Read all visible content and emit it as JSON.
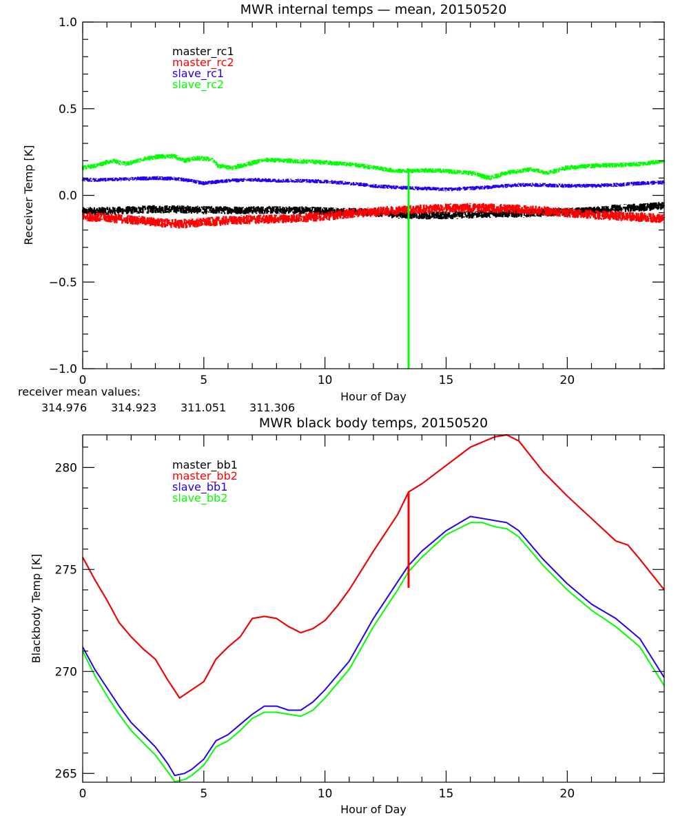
{
  "chart_data": [
    {
      "type": "line",
      "title": "MWR internal temps — mean, 20150520",
      "xlabel": "Hour of Day",
      "ylabel": "Receiver Temp [K]",
      "xlim": [
        0,
        24
      ],
      "ylim": [
        -1.0,
        1.0
      ],
      "xticks": [
        0,
        5,
        10,
        15,
        20
      ],
      "xtick_labels": [
        "0",
        "5",
        "10",
        "15",
        "20"
      ],
      "yticks": [
        -1.0,
        -0.5,
        0.0,
        0.5,
        1.0
      ],
      "ytick_labels": [
        "−1.0",
        "−0.5",
        "0.0",
        "0.5",
        "1.0"
      ],
      "legend_position": "top-left",
      "grid": false,
      "noisy": true,
      "series": [
        {
          "name": "master_rc1",
          "color": "#000000",
          "noise": 0.03,
          "x": [
            0,
            1,
            2,
            3,
            4,
            5,
            6,
            7,
            8,
            9,
            10,
            11,
            12,
            13,
            14,
            15,
            16,
            17,
            18,
            19,
            20,
            21,
            22,
            23,
            24
          ],
          "y": [
            -0.09,
            -0.09,
            -0.085,
            -0.08,
            -0.08,
            -0.085,
            -0.085,
            -0.085,
            -0.085,
            -0.085,
            -0.09,
            -0.095,
            -0.1,
            -0.11,
            -0.115,
            -0.115,
            -0.11,
            -0.105,
            -0.105,
            -0.1,
            -0.095,
            -0.09,
            -0.075,
            -0.07,
            -0.06
          ]
        },
        {
          "name": "master_rc2",
          "color": "#ff0000",
          "noise": 0.035,
          "x": [
            0,
            1,
            2,
            3,
            4,
            5,
            6,
            7,
            8,
            9,
            10,
            11,
            12,
            13,
            14,
            15,
            16,
            17,
            18,
            19,
            20,
            21,
            22,
            23,
            24
          ],
          "y": [
            -0.12,
            -0.13,
            -0.14,
            -0.155,
            -0.165,
            -0.155,
            -0.145,
            -0.14,
            -0.135,
            -0.13,
            -0.12,
            -0.105,
            -0.095,
            -0.085,
            -0.08,
            -0.075,
            -0.07,
            -0.075,
            -0.08,
            -0.09,
            -0.1,
            -0.11,
            -0.12,
            -0.125,
            -0.135
          ]
        },
        {
          "name": "slave_rc1",
          "color": "#2200ee",
          "noise": 0.015,
          "x": [
            0,
            1,
            2,
            3,
            4,
            5,
            6,
            7,
            8,
            9,
            10,
            11,
            12,
            13,
            14,
            15,
            16,
            17,
            18,
            19,
            20,
            21,
            22,
            23,
            24
          ],
          "y": [
            0.09,
            0.09,
            0.095,
            0.1,
            0.095,
            0.07,
            0.085,
            0.09,
            0.085,
            0.085,
            0.08,
            0.07,
            0.055,
            0.045,
            0.04,
            0.035,
            0.04,
            0.05,
            0.06,
            0.06,
            0.055,
            0.055,
            0.06,
            0.07,
            0.075
          ]
        },
        {
          "name": "slave_rc2",
          "color": "#00ff00",
          "noise": 0.018,
          "x": [
            0,
            0.5,
            1.2,
            1.8,
            2.5,
            3.2,
            3.8,
            4.2,
            4.7,
            5.3,
            5.6,
            6.2,
            6.8,
            7.5,
            8.5,
            10,
            11,
            12,
            13,
            14,
            15,
            16,
            16.8,
            17.5,
            18.5,
            19.2,
            20,
            21,
            22,
            23,
            24
          ],
          "y": [
            0.16,
            0.17,
            0.2,
            0.18,
            0.21,
            0.225,
            0.225,
            0.2,
            0.215,
            0.21,
            0.17,
            0.16,
            0.18,
            0.205,
            0.2,
            0.19,
            0.18,
            0.16,
            0.14,
            0.145,
            0.14,
            0.13,
            0.1,
            0.13,
            0.15,
            0.13,
            0.16,
            0.17,
            0.175,
            0.18,
            0.2
          ]
        }
      ],
      "spikes": [
        {
          "series": "slave_rc2",
          "x": 13.45,
          "from": 0.14,
          "to": -1.0
        }
      ],
      "annotation": {
        "label": "receiver mean values:",
        "values": [
          {
            "series": "master_rc1",
            "text": "314.976",
            "color": "#000000"
          },
          {
            "series": "master_rc2",
            "text": "314.923",
            "color": "#ff0000"
          },
          {
            "series": "slave_rc1",
            "text": "311.051",
            "color": "#2200ee"
          },
          {
            "series": "slave_rc2",
            "text": "311.306",
            "color": "#00ff00"
          }
        ]
      }
    },
    {
      "type": "line",
      "title": "MWR black body temps, 20150520",
      "xlabel": "Hour of Day",
      "ylabel": "Blackbody Temp [K]",
      "xlim": [
        0,
        24
      ],
      "ylim": [
        264.57,
        281.6
      ],
      "xticks": [
        0,
        5,
        10,
        15,
        20
      ],
      "xtick_labels": [
        "0",
        "5",
        "10",
        "15",
        "20"
      ],
      "yticks": [
        265,
        270,
        275,
        280
      ],
      "ytick_labels": [
        "265",
        "270",
        "275",
        "280"
      ],
      "legend_position": "top-left",
      "grid": false,
      "series": [
        {
          "name": "master_bb1",
          "color": "#000000",
          "x": [
            0,
            0.5,
            1,
            1.5,
            2,
            2.5,
            3,
            3.5,
            4,
            4.5,
            5,
            5.5,
            6,
            6.5,
            7,
            7.5,
            8,
            8.5,
            9,
            9.5,
            10,
            10.5,
            11,
            12,
            13,
            13.45,
            14,
            15,
            16,
            17,
            17.5,
            18,
            19,
            20,
            21,
            22,
            22.5,
            23,
            24
          ],
          "y": [
            275.6,
            274.5,
            273.5,
            272.4,
            271.7,
            271.1,
            270.6,
            269.6,
            268.7,
            269.1,
            269.5,
            270.6,
            271.2,
            271.7,
            272.6,
            272.7,
            272.6,
            272.2,
            271.9,
            272.1,
            272.5,
            273.2,
            274.0,
            275.9,
            277.7,
            278.8,
            279.2,
            280.1,
            281.0,
            281.5,
            281.6,
            281.3,
            279.8,
            278.6,
            277.5,
            276.4,
            276.2,
            275.5,
            274.0
          ]
        },
        {
          "name": "master_bb2",
          "color": "#ff0000",
          "x": [
            0,
            0.5,
            1,
            1.5,
            2,
            2.5,
            3,
            3.5,
            4,
            4.5,
            5,
            5.5,
            6,
            6.5,
            7,
            7.5,
            8,
            8.5,
            9,
            9.5,
            10,
            10.5,
            11,
            12,
            13,
            13.45,
            14,
            15,
            16,
            17,
            17.5,
            18,
            19,
            20,
            21,
            22,
            22.5,
            23,
            24
          ],
          "y": [
            275.6,
            274.5,
            273.5,
            272.4,
            271.7,
            271.1,
            270.6,
            269.6,
            268.7,
            269.1,
            269.5,
            270.6,
            271.2,
            271.7,
            272.6,
            272.7,
            272.6,
            272.2,
            271.9,
            272.1,
            272.5,
            273.2,
            274.0,
            275.9,
            277.7,
            278.8,
            279.2,
            280.1,
            281.0,
            281.5,
            281.6,
            281.3,
            279.8,
            278.6,
            277.5,
            276.4,
            276.2,
            275.5,
            274.0
          ]
        },
        {
          "name": "slave_bb1",
          "color": "#2200ee",
          "x": [
            0,
            0.5,
            1,
            1.5,
            2,
            2.5,
            3,
            3.5,
            3.8,
            4.2,
            4.5,
            5,
            5.5,
            6,
            6.5,
            7,
            7.5,
            8,
            8.5,
            9,
            9.5,
            10,
            11,
            12,
            13,
            13.45,
            14,
            15,
            16,
            16.5,
            17,
            17.5,
            18,
            19,
            20,
            21,
            22,
            23,
            24
          ],
          "y": [
            271.2,
            270.1,
            269.2,
            268.3,
            267.5,
            266.9,
            266.3,
            265.5,
            264.9,
            265.0,
            265.2,
            265.7,
            266.6,
            266.9,
            267.4,
            267.9,
            268.3,
            268.3,
            268.1,
            268.1,
            268.5,
            269.1,
            270.5,
            272.6,
            274.4,
            275.2,
            275.9,
            276.9,
            277.6,
            277.5,
            277.4,
            277.3,
            276.9,
            275.5,
            274.3,
            273.3,
            272.6,
            271.6,
            269.7
          ]
        },
        {
          "name": "slave_bb2",
          "color": "#00ff00",
          "x": [
            0,
            0.5,
            1,
            1.5,
            2,
            2.5,
            3,
            3.5,
            3.8,
            4.2,
            4.5,
            5,
            5.5,
            6,
            6.5,
            7,
            7.5,
            8,
            8.5,
            9,
            9.5,
            10,
            11,
            12,
            13,
            13.45,
            14,
            15,
            16,
            16.5,
            17,
            17.5,
            18,
            19,
            20,
            21,
            22,
            23,
            24
          ],
          "y": [
            271.0,
            269.8,
            268.8,
            267.9,
            267.1,
            266.5,
            265.9,
            265.1,
            264.6,
            264.7,
            264.9,
            265.4,
            266.3,
            266.6,
            267.1,
            267.7,
            268.0,
            268.0,
            267.9,
            267.8,
            268.1,
            268.7,
            270.1,
            272.2,
            274.0,
            274.9,
            275.6,
            276.7,
            277.3,
            277.3,
            277.1,
            277.0,
            276.6,
            275.2,
            274.0,
            273.0,
            272.2,
            271.2,
            269.3
          ]
        }
      ],
      "spikes": [
        {
          "series": "master_bb2",
          "x": 13.45,
          "from": 278.8,
          "to": 274.1
        }
      ]
    }
  ]
}
